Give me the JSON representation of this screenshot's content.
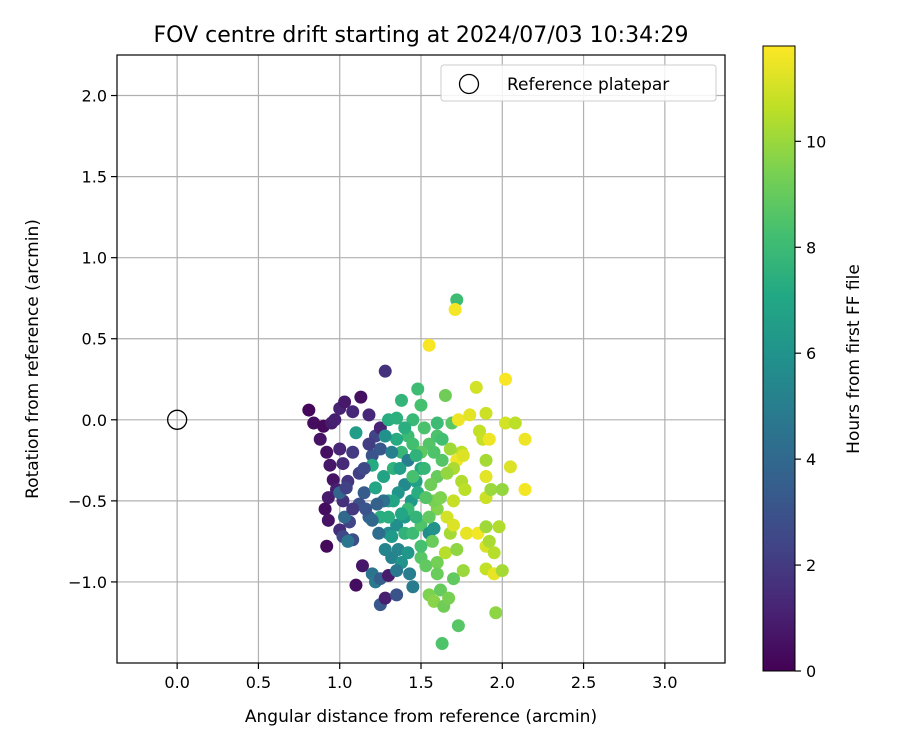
{
  "chart_data": {
    "type": "scatter",
    "title": "FOV centre drift starting at 2024/07/03 10:34:29",
    "xlabel": "Angular distance from reference (arcmin)",
    "ylabel": "Rotation from reference (arcmin)",
    "xlim": [
      -0.37,
      3.37
    ],
    "ylim": [
      -1.5,
      2.25
    ],
    "xticks": [
      0.0,
      0.5,
      1.0,
      1.5,
      2.0,
      2.5,
      3.0
    ],
    "xtick_labels": [
      "0.0",
      "0.5",
      "1.0",
      "1.5",
      "2.0",
      "2.5",
      "3.0"
    ],
    "yticks": [
      -1.0,
      -0.5,
      0.0,
      0.5,
      1.0,
      1.5,
      2.0
    ],
    "ytick_labels": [
      "−1.0",
      "−0.5",
      "0.0",
      "0.5",
      "1.0",
      "1.5",
      "2.0"
    ],
    "grid": true,
    "legend": {
      "position": "top-right",
      "entries": [
        {
          "label": "Reference platepar",
          "marker": "open-circle",
          "color": "#000000"
        }
      ]
    },
    "colorbar": {
      "label": "Hours from first FF file",
      "min": 0,
      "max": 11.8,
      "ticks": [
        0,
        2,
        4,
        6,
        8,
        10
      ],
      "tick_labels": [
        "0",
        "2",
        "4",
        "6",
        "8",
        "10"
      ],
      "colormap": "viridis"
    },
    "reference_point": {
      "x": 0.0,
      "y": 0.0
    },
    "series": [
      {
        "points": [
          {
            "x": 0.81,
            "y": 0.06,
            "c": 0.2
          },
          {
            "x": 0.84,
            "y": -0.02,
            "c": 0.4
          },
          {
            "x": 0.88,
            "y": -0.12,
            "c": 0.6
          },
          {
            "x": 0.9,
            "y": -0.04,
            "c": 0.3
          },
          {
            "x": 0.92,
            "y": -0.2,
            "c": 0.5
          },
          {
            "x": 0.94,
            "y": -0.28,
            "c": 0.7
          },
          {
            "x": 0.95,
            "y": -0.02,
            "c": 0.9
          },
          {
            "x": 0.97,
            "y": 0.0,
            "c": 1.0
          },
          {
            "x": 1.0,
            "y": 0.07,
            "c": 1.1
          },
          {
            "x": 1.03,
            "y": 0.11,
            "c": 0.8
          },
          {
            "x": 1.08,
            "y": 0.05,
            "c": 1.3
          },
          {
            "x": 1.13,
            "y": 0.14,
            "c": 0.5
          },
          {
            "x": 1.0,
            "y": -0.18,
            "c": 1.2
          },
          {
            "x": 1.02,
            "y": -0.27,
            "c": 1.4
          },
          {
            "x": 0.96,
            "y": -0.37,
            "c": 0.6
          },
          {
            "x": 0.93,
            "y": -0.48,
            "c": 0.9
          },
          {
            "x": 0.91,
            "y": -0.55,
            "c": 0.4
          },
          {
            "x": 0.93,
            "y": -0.62,
            "c": 0.6
          },
          {
            "x": 0.92,
            "y": -0.78,
            "c": 0.3
          },
          {
            "x": 0.98,
            "y": -0.43,
            "c": 1.0
          },
          {
            "x": 1.02,
            "y": -0.5,
            "c": 1.6
          },
          {
            "x": 1.05,
            "y": -0.38,
            "c": 1.8
          },
          {
            "x": 1.08,
            "y": -0.2,
            "c": 2.0
          },
          {
            "x": 1.12,
            "y": -0.33,
            "c": 2.2
          },
          {
            "x": 1.06,
            "y": -0.63,
            "c": 2.4
          },
          {
            "x": 1.0,
            "y": -0.68,
            "c": 1.5
          },
          {
            "x": 1.02,
            "y": -0.72,
            "c": 2.6
          },
          {
            "x": 1.08,
            "y": -0.74,
            "c": 2.8
          },
          {
            "x": 1.1,
            "y": -1.02,
            "c": 0.4
          },
          {
            "x": 1.14,
            "y": -0.9,
            "c": 0.7
          },
          {
            "x": 1.18,
            "y": 0.03,
            "c": 1.3
          },
          {
            "x": 1.22,
            "y": -0.1,
            "c": 2.4
          },
          {
            "x": 1.25,
            "y": -0.05,
            "c": 1.1
          },
          {
            "x": 1.28,
            "y": 0.3,
            "c": 1.7
          },
          {
            "x": 1.2,
            "y": -0.22,
            "c": 3.0
          },
          {
            "x": 1.25,
            "y": -0.18,
            "c": 3.2
          },
          {
            "x": 1.15,
            "y": -0.45,
            "c": 3.4
          },
          {
            "x": 1.18,
            "y": -0.6,
            "c": 3.6
          },
          {
            "x": 1.12,
            "y": -0.52,
            "c": 2.9
          },
          {
            "x": 1.1,
            "y": -0.08,
            "c": 6.5
          },
          {
            "x": 1.03,
            "y": -0.6,
            "c": 4.0
          },
          {
            "x": 1.05,
            "y": -0.75,
            "c": 4.6
          },
          {
            "x": 1.0,
            "y": -0.45,
            "c": 3.8
          },
          {
            "x": 1.2,
            "y": -0.95,
            "c": 4.5
          },
          {
            "x": 1.22,
            "y": -1.0,
            "c": 4.8
          },
          {
            "x": 1.25,
            "y": -0.98,
            "c": 3.5
          },
          {
            "x": 1.25,
            "y": -1.14,
            "c": 3.2
          },
          {
            "x": 1.28,
            "y": -1.1,
            "c": 1.0
          },
          {
            "x": 1.3,
            "y": -0.96,
            "c": 0.9
          },
          {
            "x": 1.35,
            "y": -1.08,
            "c": 3.0
          },
          {
            "x": 1.32,
            "y": -0.85,
            "c": 5.2
          },
          {
            "x": 1.36,
            "y": -0.8,
            "c": 5.4
          },
          {
            "x": 1.3,
            "y": -0.7,
            "c": 5.6
          },
          {
            "x": 1.35,
            "y": -0.65,
            "c": 5.8
          },
          {
            "x": 1.38,
            "y": -0.88,
            "c": 6.0
          },
          {
            "x": 1.42,
            "y": -0.82,
            "c": 6.2
          },
          {
            "x": 1.45,
            "y": -1.03,
            "c": 4.9
          },
          {
            "x": 1.4,
            "y": -0.6,
            "c": 6.4
          },
          {
            "x": 1.3,
            "y": -0.5,
            "c": 6.6
          },
          {
            "x": 1.27,
            "y": -0.35,
            "c": 6.8
          },
          {
            "x": 1.22,
            "y": -0.42,
            "c": 7.0
          },
          {
            "x": 1.2,
            "y": -0.28,
            "c": 7.2
          },
          {
            "x": 1.25,
            "y": -0.6,
            "c": 7.4
          },
          {
            "x": 1.33,
            "y": -0.3,
            "c": 7.6
          },
          {
            "x": 1.38,
            "y": -0.2,
            "c": 7.8
          },
          {
            "x": 1.42,
            "y": -0.25,
            "c": 5.0
          },
          {
            "x": 1.4,
            "y": -0.4,
            "c": 5.5
          },
          {
            "x": 1.36,
            "y": -0.45,
            "c": 6.1
          },
          {
            "x": 1.44,
            "y": -0.5,
            "c": 6.3
          },
          {
            "x": 1.47,
            "y": -0.38,
            "c": 6.7
          },
          {
            "x": 1.5,
            "y": -0.3,
            "c": 7.1
          },
          {
            "x": 1.3,
            "y": 0.0,
            "c": 7.3
          },
          {
            "x": 1.35,
            "y": 0.01,
            "c": 7.5
          },
          {
            "x": 1.38,
            "y": 0.12,
            "c": 7.7
          },
          {
            "x": 1.45,
            "y": 0.0,
            "c": 7.9
          },
          {
            "x": 1.48,
            "y": 0.19,
            "c": 8.1
          },
          {
            "x": 1.5,
            "y": 0.09,
            "c": 8.3
          },
          {
            "x": 1.42,
            "y": -0.1,
            "c": 8.0
          },
          {
            "x": 1.45,
            "y": -0.15,
            "c": 8.2
          },
          {
            "x": 1.52,
            "y": -0.05,
            "c": 8.4
          },
          {
            "x": 1.55,
            "y": -0.15,
            "c": 8.6
          },
          {
            "x": 1.5,
            "y": -0.2,
            "c": 8.8
          },
          {
            "x": 1.35,
            "y": -0.12,
            "c": 7.2
          },
          {
            "x": 1.28,
            "y": -0.1,
            "c": 5.9
          },
          {
            "x": 1.33,
            "y": -0.5,
            "c": 6.9
          },
          {
            "x": 1.3,
            "y": -0.6,
            "c": 7.4
          },
          {
            "x": 1.4,
            "y": -0.7,
            "c": 7.6
          },
          {
            "x": 1.45,
            "y": -0.7,
            "c": 8.0
          },
          {
            "x": 1.5,
            "y": -0.65,
            "c": 8.5
          },
          {
            "x": 1.55,
            "y": -0.7,
            "c": 5.7
          },
          {
            "x": 1.58,
            "y": -0.67,
            "c": 6.0
          },
          {
            "x": 1.5,
            "y": -0.85,
            "c": 8.7
          },
          {
            "x": 1.53,
            "y": -0.9,
            "c": 8.9
          },
          {
            "x": 1.57,
            "y": -0.75,
            "c": 9.1
          },
          {
            "x": 1.6,
            "y": -0.88,
            "c": 9.3
          },
          {
            "x": 1.55,
            "y": -1.08,
            "c": 9.5
          },
          {
            "x": 1.58,
            "y": -1.12,
            "c": 9.7
          },
          {
            "x": 1.62,
            "y": -1.05,
            "c": 9.0
          },
          {
            "x": 1.64,
            "y": -1.15,
            "c": 9.2
          },
          {
            "x": 1.67,
            "y": -1.1,
            "c": 9.4
          },
          {
            "x": 1.63,
            "y": -1.38,
            "c": 8.5
          },
          {
            "x": 1.73,
            "y": -1.27,
            "c": 8.7
          },
          {
            "x": 1.7,
            "y": -0.98,
            "c": 8.9
          },
          {
            "x": 1.65,
            "y": -0.82,
            "c": 10.5
          },
          {
            "x": 1.72,
            "y": -0.8,
            "c": 9.8
          },
          {
            "x": 1.76,
            "y": -0.93,
            "c": 10.0
          },
          {
            "x": 1.68,
            "y": -0.7,
            "c": 10.2
          },
          {
            "x": 1.6,
            "y": -0.55,
            "c": 9.6
          },
          {
            "x": 1.58,
            "y": -0.5,
            "c": 9.4
          },
          {
            "x": 1.6,
            "y": -0.35,
            "c": 9.0
          },
          {
            "x": 1.63,
            "y": -0.25,
            "c": 8.6
          },
          {
            "x": 1.6,
            "y": -0.1,
            "c": 8.4
          },
          {
            "x": 1.63,
            "y": -0.12,
            "c": 8.2
          },
          {
            "x": 1.6,
            "y": -0.02,
            "c": 8.0
          },
          {
            "x": 1.65,
            "y": 0.15,
            "c": 9.2
          },
          {
            "x": 1.72,
            "y": 0.74,
            "c": 8.1
          },
          {
            "x": 1.71,
            "y": 0.68,
            "c": 11.6
          },
          {
            "x": 1.55,
            "y": 0.46,
            "c": 11.7
          },
          {
            "x": 1.69,
            "y": -0.02,
            "c": 8.7
          },
          {
            "x": 1.73,
            "y": 0.0,
            "c": 11.5
          },
          {
            "x": 1.8,
            "y": 0.03,
            "c": 11.3
          },
          {
            "x": 1.84,
            "y": 0.2,
            "c": 11.0
          },
          {
            "x": 1.9,
            "y": 0.04,
            "c": 10.9
          },
          {
            "x": 1.86,
            "y": -0.07,
            "c": 10.7
          },
          {
            "x": 1.88,
            "y": -0.12,
            "c": 10.8
          },
          {
            "x": 1.75,
            "y": -0.2,
            "c": 10.6
          },
          {
            "x": 1.72,
            "y": -0.25,
            "c": 11.5
          },
          {
            "x": 1.76,
            "y": -0.22,
            "c": 11.2
          },
          {
            "x": 1.7,
            "y": -0.3,
            "c": 10.3
          },
          {
            "x": 1.75,
            "y": -0.38,
            "c": 10.4
          },
          {
            "x": 1.77,
            "y": -0.43,
            "c": 10.6
          },
          {
            "x": 1.7,
            "y": -0.5,
            "c": 10.8
          },
          {
            "x": 1.66,
            "y": -0.6,
            "c": 11.0
          },
          {
            "x": 1.7,
            "y": -0.65,
            "c": 11.2
          },
          {
            "x": 1.78,
            "y": -0.7,
            "c": 11.4
          },
          {
            "x": 1.85,
            "y": -0.7,
            "c": 11.6
          },
          {
            "x": 1.9,
            "y": -0.78,
            "c": 11.1
          },
          {
            "x": 1.9,
            "y": -0.66,
            "c": 10.1
          },
          {
            "x": 1.92,
            "y": -0.75,
            "c": 10.3
          },
          {
            "x": 1.95,
            "y": -0.82,
            "c": 10.5
          },
          {
            "x": 1.9,
            "y": -0.92,
            "c": 10.7
          },
          {
            "x": 1.95,
            "y": -0.95,
            "c": 11.4
          },
          {
            "x": 2.0,
            "y": -0.93,
            "c": 10.2
          },
          {
            "x": 1.96,
            "y": -1.19,
            "c": 9.8
          },
          {
            "x": 1.98,
            "y": -0.66,
            "c": 10.4
          },
          {
            "x": 1.9,
            "y": -0.48,
            "c": 10.9
          },
          {
            "x": 1.9,
            "y": -0.35,
            "c": 11.3
          },
          {
            "x": 1.9,
            "y": -0.25,
            "c": 10.2
          },
          {
            "x": 1.93,
            "y": -0.43,
            "c": 10.0
          },
          {
            "x": 2.0,
            "y": -0.43,
            "c": 9.9
          },
          {
            "x": 2.05,
            "y": -0.29,
            "c": 11.2
          },
          {
            "x": 2.02,
            "y": -0.02,
            "c": 11.0
          },
          {
            "x": 2.08,
            "y": -0.02,
            "c": 10.6
          },
          {
            "x": 2.14,
            "y": -0.12,
            "c": 11.5
          },
          {
            "x": 2.14,
            "y": -0.43,
            "c": 11.6
          },
          {
            "x": 2.02,
            "y": 0.25,
            "c": 11.7
          },
          {
            "x": 1.92,
            "y": -0.12,
            "c": 11.5
          },
          {
            "x": 1.45,
            "y": -0.35,
            "c": 8.3
          },
          {
            "x": 1.48,
            "y": -0.45,
            "c": 7.3
          },
          {
            "x": 1.53,
            "y": -0.48,
            "c": 8.6
          },
          {
            "x": 1.56,
            "y": -0.4,
            "c": 9.2
          },
          {
            "x": 1.42,
            "y": -0.55,
            "c": 7.9
          },
          {
            "x": 1.38,
            "y": -0.58,
            "c": 7.0
          },
          {
            "x": 1.32,
            "y": -0.72,
            "c": 6.4
          },
          {
            "x": 1.28,
            "y": -0.8,
            "c": 5.3
          },
          {
            "x": 1.24,
            "y": -0.7,
            "c": 4.2
          },
          {
            "x": 1.2,
            "y": -0.62,
            "c": 3.9
          },
          {
            "x": 1.16,
            "y": -0.55,
            "c": 3.1
          },
          {
            "x": 1.15,
            "y": -0.3,
            "c": 2.6
          },
          {
            "x": 1.18,
            "y": -0.15,
            "c": 2.1
          },
          {
            "x": 1.08,
            "y": -0.55,
            "c": 1.9
          },
          {
            "x": 1.04,
            "y": -0.42,
            "c": 2.3
          },
          {
            "x": 1.32,
            "y": -0.2,
            "c": 5.1
          },
          {
            "x": 1.37,
            "y": -0.3,
            "c": 6.6
          },
          {
            "x": 1.4,
            "y": -0.05,
            "c": 7.4
          },
          {
            "x": 1.47,
            "y": -0.6,
            "c": 7.7
          },
          {
            "x": 1.43,
            "y": -0.95,
            "c": 5.0
          },
          {
            "x": 1.35,
            "y": -0.93,
            "c": 4.7
          },
          {
            "x": 1.27,
            "y": -0.5,
            "c": 4.4
          },
          {
            "x": 1.23,
            "y": -0.52,
            "c": 3.7
          },
          {
            "x": 1.55,
            "y": -0.6,
            "c": 8.9
          },
          {
            "x": 1.62,
            "y": -0.48,
            "c": 9.5
          },
          {
            "x": 1.66,
            "y": -0.33,
            "c": 9.9
          },
          {
            "x": 1.68,
            "y": -0.18,
            "c": 10.1
          },
          {
            "x": 1.52,
            "y": -0.3,
            "c": 7.8
          },
          {
            "x": 1.58,
            "y": -0.2,
            "c": 8.5
          },
          {
            "x": 1.47,
            "y": -0.22,
            "c": 7.6
          },
          {
            "x": 1.5,
            "y": -0.78,
            "c": 8.3
          },
          {
            "x": 1.6,
            "y": -0.95,
            "c": 9.1
          }
        ]
      }
    ]
  }
}
